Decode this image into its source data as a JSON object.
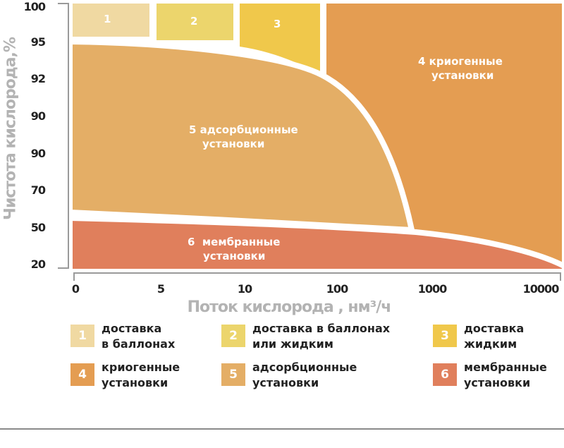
{
  "chart_data": {
    "type": "area",
    "ylabel": "Чистота кислорода,%",
    "xlabel": "Поток кислорода , нм³/ч",
    "y_ticks": [
      "100",
      "95",
      "92",
      "90",
      "90",
      "70",
      "50",
      "20"
    ],
    "x_ticks": [
      "0",
      "5",
      "10",
      "100",
      "1000",
      "10000"
    ],
    "regions": [
      {
        "id": "1",
        "label": "1",
        "color": "#f0d9a2"
      },
      {
        "id": "2",
        "label": "2",
        "color": "#ecd56c"
      },
      {
        "id": "3",
        "label": "3",
        "color": "#f0c84b"
      },
      {
        "id": "4",
        "label_num": "4",
        "label_line1": "криогенные",
        "label_line2": "установки",
        "color": "#e49d52"
      },
      {
        "id": "5",
        "label_num": "5",
        "label_line1": "адсорбционные",
        "label_line2": "установки",
        "color": "#e4ae66"
      },
      {
        "id": "6",
        "label_num": "6",
        "label_line1": "мембранные",
        "label_line2": "установки",
        "color": "#e07f5c"
      }
    ]
  },
  "legend": [
    {
      "num": "1",
      "line1": "доставка",
      "line2": "в баллонах",
      "color": "#f0d9a2"
    },
    {
      "num": "2",
      "line1": "доставка в баллонах",
      "line2": "или жидким",
      "color": "#ecd56c"
    },
    {
      "num": "3",
      "line1": "доставка",
      "line2": "жидким",
      "color": "#f0c84b"
    },
    {
      "num": "4",
      "line1": "криогенные",
      "line2": "установки",
      "color": "#e49d52"
    },
    {
      "num": "5",
      "line1": "адсорбционные",
      "line2": "установки",
      "color": "#e4ae66"
    },
    {
      "num": "6",
      "line1": "мембранные",
      "line2": "установки",
      "color": "#e07f5c"
    }
  ]
}
